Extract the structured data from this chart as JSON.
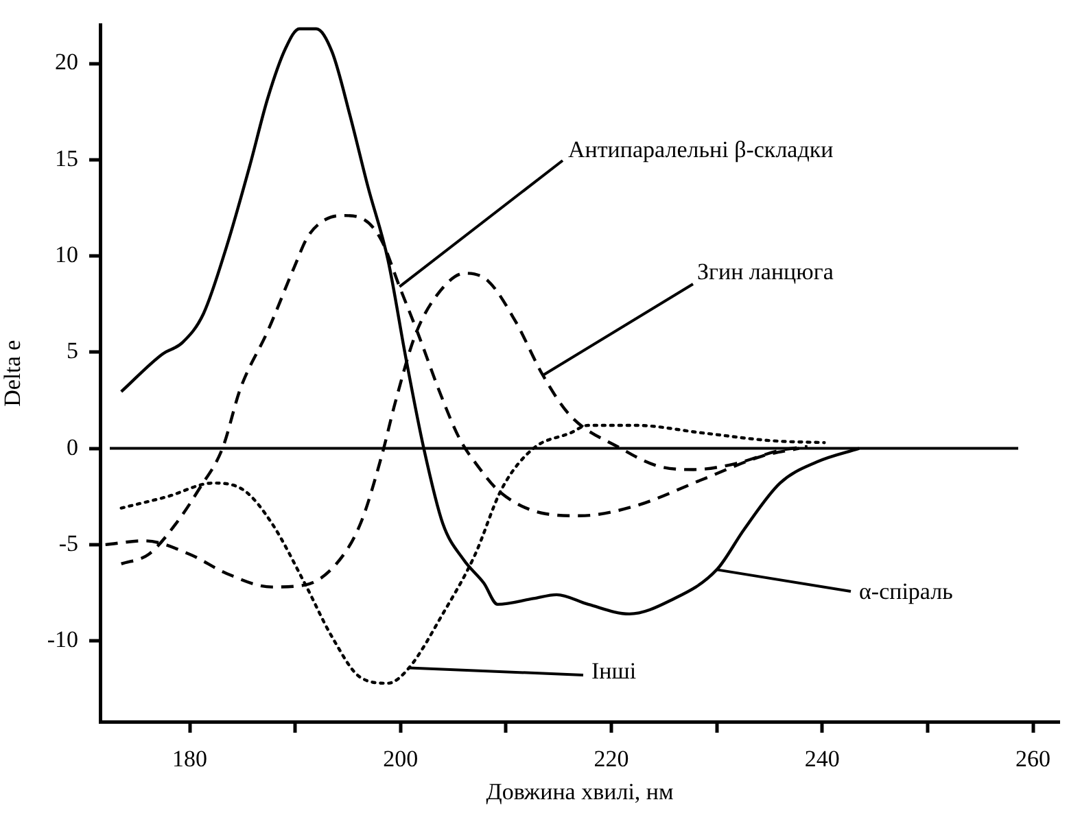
{
  "chart_data": {
    "type": "line",
    "xlabel": "Довжина хвилі, нм",
    "ylabel": "Delta e",
    "xlim": [
      171.5,
      262.5
    ],
    "ylim": [
      -14.2,
      22
    ],
    "xticks": [
      180,
      {
        "value": 190,
        "label": null
      },
      200,
      {
        "value": 210,
        "label": null
      },
      220,
      {
        "value": 230,
        "label": null
      },
      240,
      {
        "value": 250,
        "label": null
      },
      260
    ],
    "yticks": [
      -10,
      -5,
      0,
      5,
      10,
      15,
      20
    ],
    "grid": false,
    "legend": false,
    "marker": "none",
    "ref_lines": [
      {
        "axis": "y",
        "value": 0,
        "color": "#000000"
      }
    ],
    "annotations": [
      {
        "text": "α-спіраль",
        "x": 230,
        "y": -6.3
      },
      {
        "text": "Антипаралельні β-складки",
        "x": 199.9,
        "y": 8.4
      },
      {
        "text": "Згин ланцюга",
        "x": 213.5,
        "y": 3.8
      },
      {
        "text": "Інші",
        "x": 200.8,
        "y": -11.4
      }
    ],
    "series": [
      {
        "color": "#000000",
        "line_style": "solid",
        "x": [
          173.5,
          177.4,
          179.3,
          181.3,
          183.5,
          185.7,
          187.4,
          189.1,
          190.4,
          192,
          193.5,
          195.2,
          196.9,
          198.8,
          200.5,
          202.2,
          204,
          206,
          207.9,
          209.2,
          212.6,
          214.8,
          217.8,
          221.7,
          225.6,
          230,
          232.6,
          236,
          239.5,
          243.5
        ],
        "values": [
          2.95,
          4.9,
          5.5,
          7.0,
          10.5,
          14.7,
          18.2,
          20.8,
          21.8,
          21.8,
          20.6,
          17.3,
          13.6,
          9.8,
          4.7,
          0,
          -3.9,
          -5.8,
          -7.0,
          -8.1,
          -7.8,
          -7.6,
          -8.1,
          -8.6,
          -7.9,
          -6.3,
          -4.2,
          -1.8,
          -0.7,
          0
        ]
      },
      {
        "color": "#000000",
        "line_style": "dashed",
        "x": [
          173.5,
          176.1,
          178.7,
          180.9,
          183.1,
          184.8,
          187.4,
          189.9,
          191.2,
          192.9,
          194.6,
          196.5,
          198.2,
          199.9,
          201.7,
          203.8,
          205.6,
          207.3,
          209.5,
          213.8,
          217,
          222.2,
          228.7,
          234.3,
          237.8
        ],
        "values": [
          -6.0,
          -5.5,
          -3.9,
          -2.1,
          0,
          3.1,
          6.1,
          9.4,
          11.0,
          11.9,
          12.1,
          11.9,
          10.8,
          8.4,
          5.9,
          2.8,
          0.5,
          -0.9,
          -2.3,
          -3.4,
          -3.5,
          -3.0,
          -1.6,
          -0.4,
          0
        ]
      },
      {
        "color": "#000000",
        "line_style": "dashed",
        "x": [
          172,
          175.7,
          180,
          183.5,
          187.8,
          190.9,
          193.9,
          196.2,
          198.2,
          199.5,
          201.4,
          203.5,
          206.1,
          208.3,
          210.9,
          213.5,
          216.1,
          220.9,
          224.3,
          227.8,
          231.7,
          236,
          238.6
        ],
        "values": [
          -5.0,
          -4.8,
          -5.5,
          -6.5,
          -7.2,
          -7.1,
          -6.0,
          -3.9,
          -0.4,
          2.4,
          5.9,
          8.0,
          9.1,
          8.7,
          6.6,
          3.8,
          1.7,
          0,
          -0.9,
          -1.1,
          -0.8,
          -0.1,
          0.1
        ]
      },
      {
        "color": "#000000",
        "line_style": "dotted",
        "x": [
          173.5,
          177.9,
          182.2,
          185.2,
          187.8,
          190.9,
          193.5,
          196.2,
          198.8,
          200.8,
          204,
          207,
          209.6,
          212.6,
          216.1,
          217.8,
          222.2,
          228.7,
          235.2,
          240.2
        ],
        "values": [
          -3.1,
          -2.5,
          -1.8,
          -2.2,
          -3.9,
          -7.0,
          -9.8,
          -11.9,
          -12.2,
          -11.4,
          -8.6,
          -5.6,
          -2.1,
          0,
          0.8,
          1.2,
          1.2,
          0.8,
          0.4,
          0.3
        ]
      }
    ]
  }
}
